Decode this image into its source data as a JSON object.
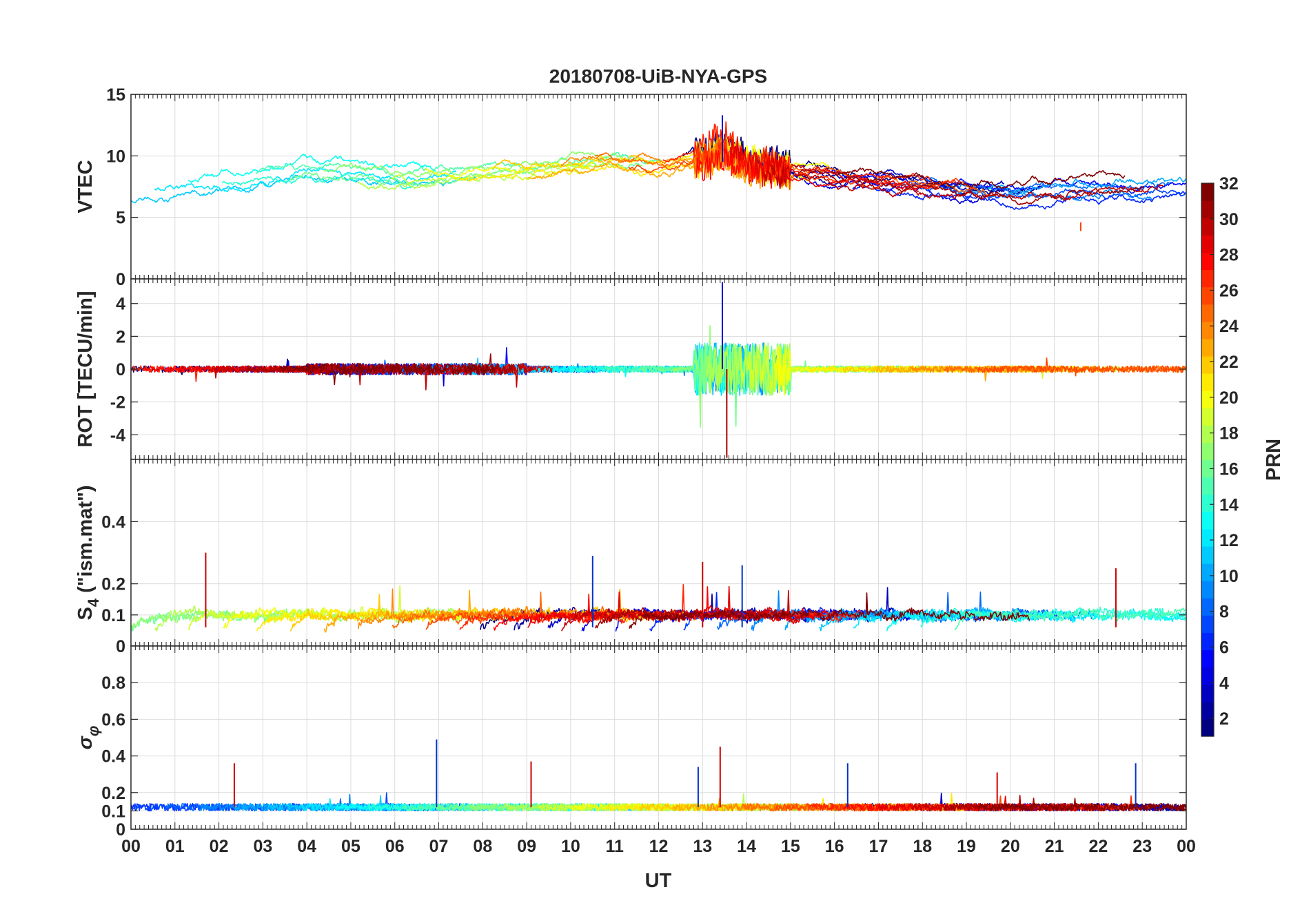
{
  "figure": {
    "title": "20180708-UiB-NYA-GPS",
    "xlabel": "UT",
    "x_tick_labels": [
      "00",
      "01",
      "02",
      "03",
      "04",
      "05",
      "06",
      "07",
      "08",
      "09",
      "10",
      "11",
      "12",
      "13",
      "14",
      "15",
      "16",
      "17",
      "18",
      "19",
      "20",
      "21",
      "22",
      "23",
      "00"
    ]
  },
  "colorbar": {
    "label": "PRN",
    "range": [
      1,
      32
    ],
    "tick_labels": [
      "2",
      "4",
      "6",
      "8",
      "10",
      "12",
      "14",
      "16",
      "18",
      "20",
      "22",
      "24",
      "26",
      "28",
      "30",
      "32"
    ],
    "colormap": "jet",
    "colors": [
      "#00008f",
      "#0000ff",
      "#0080ff",
      "#00ffff",
      "#80ff80",
      "#ffff00",
      "#ff8000",
      "#ff0000",
      "#800000"
    ]
  },
  "chart_data": [
    {
      "type": "line",
      "panel": "vtec",
      "title": "20180708-UiB-NYA-GPS",
      "ylabel": "VTEC",
      "xlim": [
        0,
        24
      ],
      "ylim": [
        0,
        15
      ],
      "y_ticks": [
        0,
        5,
        10,
        15
      ],
      "y_tick_labels": [
        "0",
        "5",
        "10",
        "15"
      ],
      "grid": true,
      "series_note_colors_by": "PRN (1-32)",
      "representative_levels": {
        "x": [
          0,
          1,
          2,
          3,
          4,
          5,
          6,
          7,
          8,
          9,
          10,
          11,
          12,
          13,
          13.5,
          14,
          15,
          16,
          17,
          18,
          19,
          20,
          21,
          22,
          23,
          24
        ],
        "y": [
          7,
          7.3,
          7.8,
          8.3,
          8.7,
          8.5,
          8.2,
          8.4,
          8.6,
          8.8,
          9.3,
          9.5,
          9.2,
          9.6,
          10.5,
          9.2,
          8.6,
          8.2,
          7.9,
          7.5,
          7.2,
          6.9,
          7.0,
          7.2,
          7.4,
          7.3
        ]
      },
      "extremes": {
        "max": 13.3,
        "max_x": 13.45,
        "min": 3.9,
        "min_x": 21.6
      }
    },
    {
      "type": "line",
      "panel": "rot",
      "ylabel": "ROT [TECU/min]",
      "xlim": [
        0,
        24
      ],
      "ylim": [
        -5.5,
        5.5
      ],
      "y_ticks": [
        -4,
        -2,
        0,
        2,
        4
      ],
      "y_tick_labels": [
        "-4",
        "-2",
        "0",
        "2",
        "4"
      ],
      "grid": true,
      "baseline": 0,
      "disturbed_interval": [
        12.8,
        15.0
      ],
      "extremes": {
        "max": 5.3,
        "max_x": 13.45,
        "min": -5.4,
        "min_x": 13.55
      }
    },
    {
      "type": "line",
      "panel": "s4",
      "ylabel": "S4 (\"ism.mat\")",
      "ylabel_main": "S",
      "ylabel_sub": "4",
      "ylabel_rest": " (\"ism.mat\")",
      "xlim": [
        0,
        24
      ],
      "ylim": [
        0,
        0.6
      ],
      "y_ticks": [
        0,
        0.1,
        0.2,
        0.4
      ],
      "y_tick_labels": [
        "0",
        "0.1",
        "0.2",
        "0.4"
      ],
      "grid": true,
      "peaks": [
        {
          "x": 1.7,
          "y": 0.3
        },
        {
          "x": 10.5,
          "y": 0.29
        },
        {
          "x": 13.0,
          "y": 0.27
        },
        {
          "x": 13.9,
          "y": 0.26
        },
        {
          "x": 22.4,
          "y": 0.25
        }
      ]
    },
    {
      "type": "line",
      "panel": "sigma_phi",
      "ylabel": "σφ",
      "ylabel_main": "σ",
      "ylabel_sub": "φ",
      "xlim": [
        0,
        24
      ],
      "ylim": [
        0,
        1
      ],
      "y_ticks": [
        0,
        0.1,
        0.2,
        0.4,
        0.6,
        0.8
      ],
      "y_tick_labels": [
        "0",
        "0.1",
        "0.2",
        "0.4",
        "0.6",
        "0.8"
      ],
      "grid": true,
      "baseline": 0.12,
      "peaks": [
        {
          "x": 2.35,
          "y": 0.36
        },
        {
          "x": 6.95,
          "y": 0.49
        },
        {
          "x": 9.1,
          "y": 0.37
        },
        {
          "x": 12.9,
          "y": 0.34
        },
        {
          "x": 13.4,
          "y": 0.45
        },
        {
          "x": 16.3,
          "y": 0.36
        },
        {
          "x": 19.7,
          "y": 0.31
        },
        {
          "x": 22.85,
          "y": 0.36
        }
      ]
    }
  ]
}
